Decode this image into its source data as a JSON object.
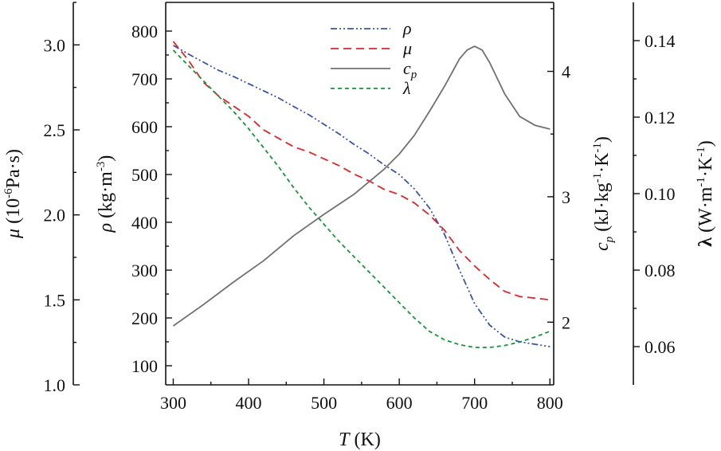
{
  "chart_data": {
    "type": "line",
    "title": "",
    "x_axis": {
      "label_var": "T",
      "label_unit": " (K)",
      "range": [
        290,
        805
      ],
      "ticks": [
        300,
        400,
        500,
        600,
        700,
        800
      ]
    },
    "y_axes": {
      "rho": {
        "label_var": "ρ",
        "label_unit": " (kg·m",
        "label_exp": "-3",
        "label_close": ")",
        "range": [
          60,
          860
        ],
        "ticks": [
          100,
          200,
          300,
          400,
          500,
          600,
          700,
          800
        ]
      },
      "mu": {
        "label_var": "μ",
        "label_unit": " (10",
        "label_exp": "-6",
        "label_rest": "Pa·s)",
        "range": [
          1.0,
          3.25
        ],
        "ticks": [
          1.0,
          1.5,
          2.0,
          2.5,
          3.0
        ],
        "tick_labels": [
          "1.0",
          "1.5",
          "2.0",
          "2.5",
          "3.0"
        ]
      },
      "cp": {
        "label_var": "c",
        "label_sub": "p",
        "label_unit": " (kJ·kg",
        "label_exp1": "-1",
        "label_mid": "·K",
        "label_exp2": "-1",
        "label_close": ")",
        "range": [
          1.5,
          4.55
        ],
        "ticks": [
          2,
          3,
          4
        ],
        "tick_labels": [
          "2",
          "3",
          "4"
        ]
      },
      "lambda": {
        "label_var": "λ",
        "label_unit": " (W·m",
        "label_exp1": "-1",
        "label_mid": "·K",
        "label_exp2": "-1",
        "label_close": ")",
        "range": [
          0.05,
          0.15
        ],
        "ticks": [
          0.06,
          0.08,
          0.1,
          0.12,
          0.14
        ],
        "tick_labels": [
          "0.06",
          "0.08",
          "0.10",
          "0.12",
          "0.14"
        ]
      }
    },
    "series": [
      {
        "name": "ρ",
        "axis": "rho",
        "color": "#3a55a8",
        "dash": "8,3,2,3,2,3",
        "x": [
          300,
          320,
          340,
          360,
          380,
          400,
          420,
          440,
          460,
          480,
          500,
          520,
          540,
          560,
          580,
          600,
          620,
          640,
          660,
          680,
          700,
          720,
          740,
          760,
          780,
          800
        ],
        "y": [
          770,
          752,
          735,
          718,
          705,
          690,
          675,
          660,
          642,
          625,
          605,
          585,
          563,
          543,
          520,
          500,
          470,
          430,
          375,
          300,
          230,
          185,
          160,
          150,
          145,
          140
        ]
      },
      {
        "name": "μ",
        "axis": "mu",
        "color": "#e0242a",
        "dash": "10,6",
        "x": [
          300,
          320,
          340,
          360,
          380,
          400,
          420,
          440,
          460,
          480,
          500,
          520,
          540,
          560,
          580,
          600,
          620,
          640,
          660,
          680,
          700,
          720,
          740,
          760,
          780,
          800
        ],
        "y": [
          3.02,
          2.91,
          2.78,
          2.7,
          2.64,
          2.58,
          2.5,
          2.45,
          2.4,
          2.37,
          2.33,
          2.29,
          2.24,
          2.2,
          2.15,
          2.12,
          2.07,
          2.0,
          1.91,
          1.79,
          1.7,
          1.62,
          1.55,
          1.52,
          1.51,
          1.5
        ]
      },
      {
        "name": "cp",
        "axis": "cp",
        "color": "#707070",
        "dash": "",
        "x": [
          300,
          340,
          380,
          420,
          460,
          500,
          540,
          580,
          600,
          620,
          640,
          660,
          680,
          690,
          700,
          710,
          720,
          740,
          760,
          780,
          800
        ],
        "y": [
          1.97,
          2.14,
          2.32,
          2.49,
          2.69,
          2.86,
          3.02,
          3.22,
          3.34,
          3.49,
          3.68,
          3.88,
          4.1,
          4.17,
          4.2,
          4.17,
          4.07,
          3.82,
          3.64,
          3.57,
          3.54
        ]
      },
      {
        "name": "λ",
        "axis": "lambda",
        "color": "#15953a",
        "dash": "5,4",
        "x": [
          300,
          320,
          340,
          360,
          380,
          400,
          420,
          440,
          460,
          480,
          500,
          520,
          540,
          560,
          580,
          600,
          620,
          640,
          660,
          680,
          700,
          720,
          740,
          760,
          780,
          800
        ],
        "y": [
          0.1375,
          0.1335,
          0.1295,
          0.1255,
          0.1215,
          0.117,
          0.112,
          0.107,
          0.1015,
          0.0965,
          0.092,
          0.0875,
          0.0835,
          0.0795,
          0.0755,
          0.0715,
          0.0675,
          0.064,
          0.0618,
          0.0605,
          0.0598,
          0.0598,
          0.0603,
          0.0612,
          0.0625,
          0.064
        ]
      }
    ],
    "legend": {
      "position": "top-center",
      "entries": [
        {
          "label": "ρ",
          "sub": ""
        },
        {
          "label": "μ",
          "sub": ""
        },
        {
          "label": "c",
          "sub": "p"
        },
        {
          "label": "λ",
          "sub": ""
        }
      ]
    }
  }
}
